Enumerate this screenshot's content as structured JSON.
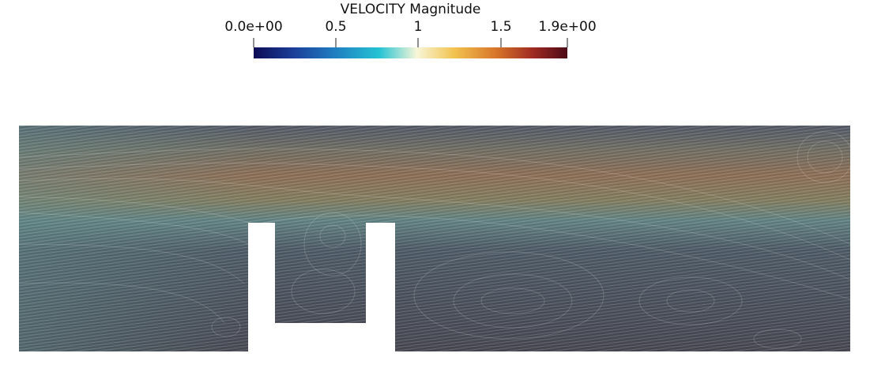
{
  "legend": {
    "title": "VELOCITY Magnitude",
    "ticks": [
      {
        "label": "0.0e+00",
        "value": 0.0
      },
      {
        "label": "0.5",
        "value": 0.5
      },
      {
        "label": "1",
        "value": 1.0
      },
      {
        "label": "1.5",
        "value": 1.5
      },
      {
        "label": "1.9e+00",
        "value": 1.9
      }
    ],
    "range": [
      0.0,
      1.9
    ],
    "colormap_stops": [
      "#0d0b55",
      "#1b3f9a",
      "#1f7fc1",
      "#25c3d3",
      "#f8f6d8",
      "#f2c24e",
      "#d8772a",
      "#a02a22",
      "#4c0a16"
    ]
  },
  "colors": {
    "background": "#ffffff",
    "domain_base": "#4a4a58",
    "fast_jet": "#8a6b52",
    "mid_flow": "#5b7d80",
    "obstacle_fill": "#ffffff"
  }
}
